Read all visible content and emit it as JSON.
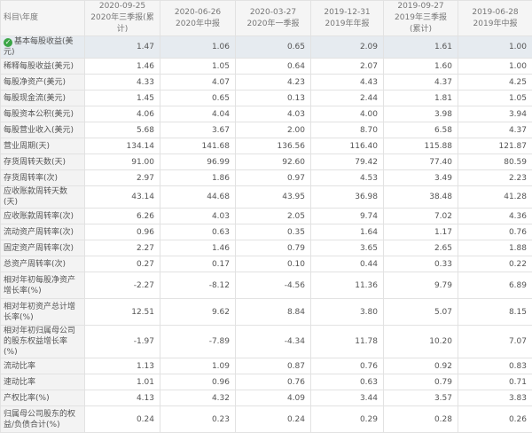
{
  "header": {
    "label": "科目\\年度",
    "columns": [
      {
        "date": "2020-09-25",
        "period": "2020年三季报(累计)"
      },
      {
        "date": "2020-06-26",
        "period": "2020年中报"
      },
      {
        "date": "2020-03-27",
        "period": "2020年一季报"
      },
      {
        "date": "2019-12-31",
        "period": "2019年年报"
      },
      {
        "date": "2019-09-27",
        "period": "2019年三季报(累计)"
      },
      {
        "date": "2019-06-28",
        "period": "2019年中报"
      }
    ]
  },
  "rows": [
    {
      "label": "基本每股收益(美元)",
      "values": [
        "1.47",
        "1.06",
        "0.65",
        "2.09",
        "1.61",
        "1.00"
      ]
    },
    {
      "label": "稀释每股收益(美元)",
      "values": [
        "1.46",
        "1.05",
        "0.64",
        "2.07",
        "1.60",
        "1.00"
      ]
    },
    {
      "label": "每股净资产(美元)",
      "values": [
        "4.33",
        "4.07",
        "4.23",
        "4.43",
        "4.37",
        "4.25"
      ]
    },
    {
      "label": "每股现金流(美元)",
      "values": [
        "1.45",
        "0.65",
        "0.13",
        "2.44",
        "1.81",
        "1.05"
      ]
    },
    {
      "label": "每股资本公积(美元)",
      "values": [
        "4.06",
        "4.04",
        "4.03",
        "4.00",
        "3.98",
        "3.94"
      ]
    },
    {
      "label": "每股营业收入(美元)",
      "values": [
        "5.68",
        "3.67",
        "2.00",
        "8.70",
        "6.58",
        "4.37"
      ]
    },
    {
      "label": "营业周期(天)",
      "values": [
        "134.14",
        "141.68",
        "136.56",
        "116.40",
        "115.88",
        "121.87"
      ]
    },
    {
      "label": "存货周转天数(天)",
      "values": [
        "91.00",
        "96.99",
        "92.60",
        "79.42",
        "77.40",
        "80.59"
      ]
    },
    {
      "label": "存货周转率(次)",
      "values": [
        "2.97",
        "1.86",
        "0.97",
        "4.53",
        "3.49",
        "2.23"
      ]
    },
    {
      "label": "应收账款周转天数(天)",
      "values": [
        "43.14",
        "44.68",
        "43.95",
        "36.98",
        "38.48",
        "41.28"
      ]
    },
    {
      "label": "应收账款周转率(次)",
      "values": [
        "6.26",
        "4.03",
        "2.05",
        "9.74",
        "7.02",
        "4.36"
      ]
    },
    {
      "label": "流动资产周转率(次)",
      "values": [
        "0.96",
        "0.63",
        "0.35",
        "1.64",
        "1.17",
        "0.76"
      ]
    },
    {
      "label": "固定资产周转率(次)",
      "values": [
        "2.27",
        "1.46",
        "0.79",
        "3.65",
        "2.65",
        "1.88"
      ]
    },
    {
      "label": "总资产周转率(次)",
      "values": [
        "0.27",
        "0.17",
        "0.10",
        "0.44",
        "0.33",
        "0.22"
      ]
    },
    {
      "label": "相对年初每股净资产增长率(%)",
      "values": [
        "-2.27",
        "-8.12",
        "-4.56",
        "11.36",
        "9.79",
        "6.89"
      ],
      "tall": true
    },
    {
      "label": "相对年初资产总计增长率(%)",
      "values": [
        "12.51",
        "9.62",
        "8.84",
        "3.80",
        "5.07",
        "8.15"
      ],
      "tall": true
    },
    {
      "label": "相对年初归属母公司的股东权益增长率(%)",
      "values": [
        "-1.97",
        "-7.89",
        "-4.34",
        "11.78",
        "10.20",
        "7.07"
      ],
      "tall": true
    },
    {
      "label": "流动比率",
      "values": [
        "1.13",
        "1.09",
        "0.87",
        "0.76",
        "0.92",
        "0.83"
      ]
    },
    {
      "label": "速动比率",
      "values": [
        "1.01",
        "0.96",
        "0.76",
        "0.63",
        "0.79",
        "0.71"
      ]
    },
    {
      "label": "产权比率(%)",
      "values": [
        "4.13",
        "4.32",
        "4.09",
        "3.44",
        "3.57",
        "3.83"
      ]
    },
    {
      "label": "归属母公司股东的权益/负债合计(%)",
      "values": [
        "0.24",
        "0.23",
        "0.24",
        "0.29",
        "0.28",
        "0.26"
      ],
      "tall": true
    }
  ],
  "selected_icon": "check-circle-icon",
  "colors": {
    "highlight": "#e6ebf0",
    "check": "#3aa546"
  }
}
